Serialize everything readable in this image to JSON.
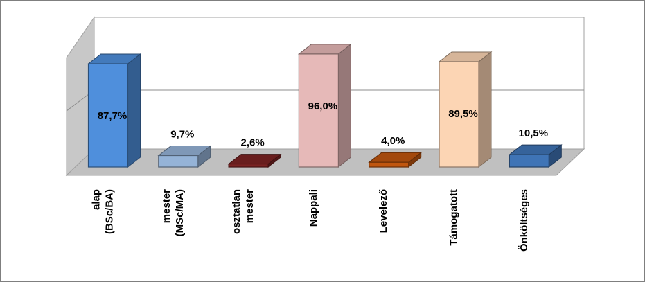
{
  "chart_data": {
    "type": "bar",
    "style": "3d-column",
    "categories": [
      [
        "alap",
        "(BSc/BA)"
      ],
      [
        "mester",
        "(MSc/MA)"
      ],
      [
        "osztatlan",
        "mester"
      ],
      [
        "Nappali"
      ],
      [
        "Levelező"
      ],
      [
        "Támogatott"
      ],
      [
        "Önköltséges"
      ]
    ],
    "values": [
      87.7,
      9.7,
      2.6,
      96.0,
      4.0,
      89.5,
      10.5
    ],
    "data_labels": [
      "87,7%",
      "9,7%",
      "2,6%",
      "96,0%",
      "4,0%",
      "89,5%",
      "10,5%"
    ],
    "colors": [
      "#4f8fdc",
      "#95b3d7",
      "#7b2323",
      "#e6b9b8",
      "#c0560f",
      "#fcd5b4",
      "#3f74b6"
    ],
    "ylim": [
      0,
      100
    ],
    "grid": true,
    "legend": "none"
  }
}
